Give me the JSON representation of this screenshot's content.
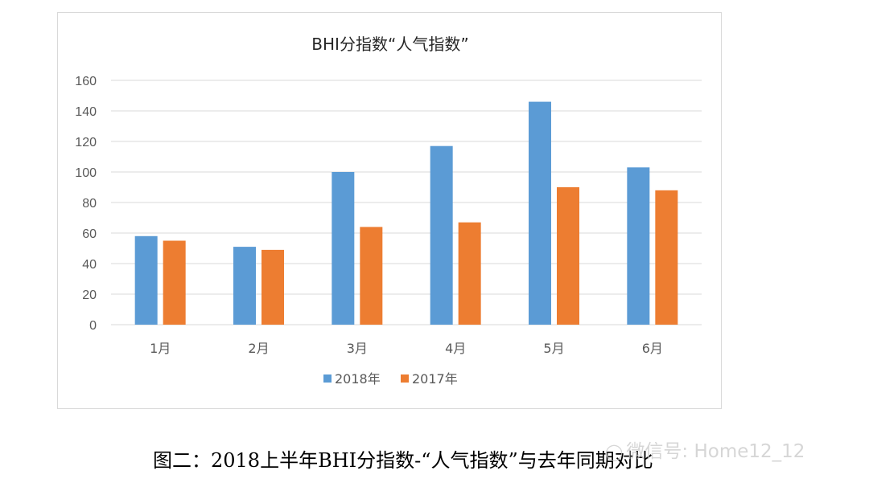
{
  "chart_data": {
    "type": "bar",
    "title": "BHI分指数“人气指数”",
    "categories": [
      "1月",
      "2月",
      "3月",
      "4月",
      "5月",
      "6月"
    ],
    "series": [
      {
        "name": "2018年",
        "color": "#5b9bd5",
        "values": [
          58,
          51,
          100,
          117,
          146,
          103
        ]
      },
      {
        "name": "2017年",
        "color": "#ed7d31",
        "values": [
          55,
          49,
          64,
          67,
          90,
          88
        ]
      }
    ],
    "ylim": [
      0,
      160
    ],
    "yticks": [
      0,
      20,
      40,
      60,
      80,
      100,
      120,
      140,
      160
    ],
    "grid": true,
    "legend_position": "bottom",
    "xlabel": "",
    "ylabel": ""
  },
  "caption": "图二：2018上半年BHI分指数-“人气指数”与去年同期对比",
  "watermark": {
    "text": "微信号: Home12_12",
    "icon": "wechat-icon"
  }
}
